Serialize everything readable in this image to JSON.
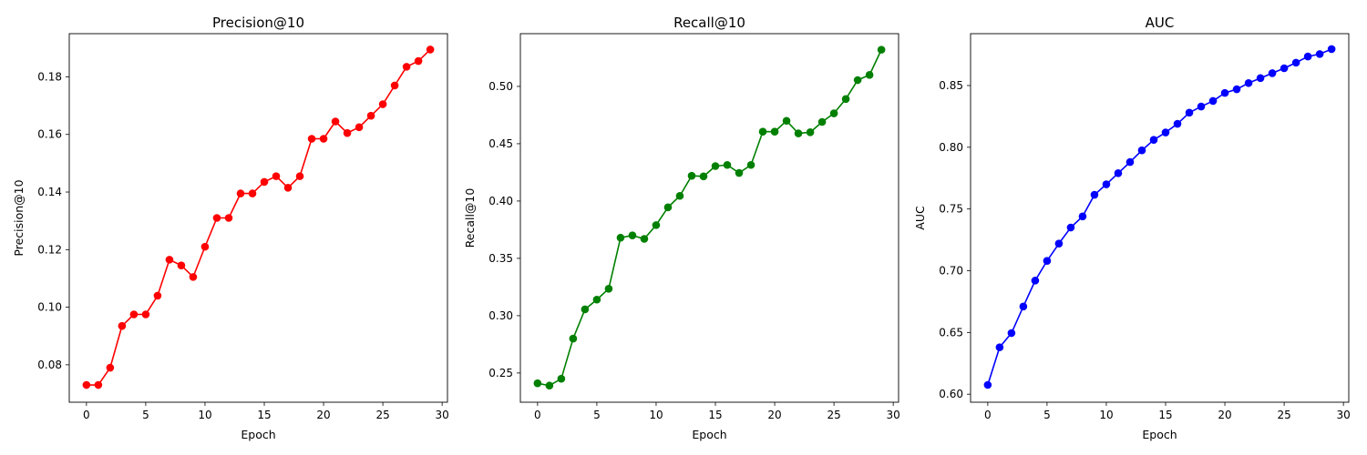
{
  "chart_data": [
    {
      "type": "line",
      "title": "Precision@10",
      "xlabel": "Epoch",
      "ylabel": "Precision@10",
      "color": "#ff0000",
      "xlim": [
        -1.45,
        30.45
      ],
      "ylim": [
        0.067,
        0.195
      ],
      "xticks": [
        0,
        5,
        10,
        15,
        20,
        25,
        30
      ],
      "xtick_labels": [
        "0",
        "5",
        "10",
        "15",
        "20",
        "25",
        "30"
      ],
      "yticks": [
        0.08,
        0.1,
        0.12,
        0.14,
        0.16,
        0.18
      ],
      "ytick_labels": [
        "0.08",
        "0.10",
        "0.12",
        "0.14",
        "0.16",
        "0.18"
      ],
      "x": [
        0,
        1,
        2,
        3,
        4,
        5,
        6,
        7,
        8,
        9,
        10,
        11,
        12,
        13,
        14,
        15,
        16,
        17,
        18,
        19,
        20,
        21,
        22,
        23,
        24,
        25,
        26,
        27,
        28,
        29
      ],
      "values": [
        0.073,
        0.073,
        0.079,
        0.0935,
        0.0975,
        0.0975,
        0.104,
        0.1165,
        0.1145,
        0.1105,
        0.121,
        0.131,
        0.131,
        0.1395,
        0.1395,
        0.1435,
        0.1455,
        0.1415,
        0.1455,
        0.1585,
        0.1585,
        0.1645,
        0.1605,
        0.1625,
        0.1665,
        0.1705,
        0.177,
        0.1835,
        0.1855,
        0.1895
      ]
    },
    {
      "type": "line",
      "title": "Recall@10",
      "xlabel": "Epoch",
      "ylabel": "Recall@10",
      "color": "#008000",
      "xlim": [
        -1.45,
        30.45
      ],
      "ylim": [
        0.2245,
        0.546
      ],
      "xticks": [
        0,
        5,
        10,
        15,
        20,
        25,
        30
      ],
      "xtick_labels": [
        "0",
        "5",
        "10",
        "15",
        "20",
        "25",
        "30"
      ],
      "yticks": [
        0.25,
        0.3,
        0.35,
        0.4,
        0.45,
        0.5
      ],
      "ytick_labels": [
        "0.25",
        "0.30",
        "0.35",
        "0.40",
        "0.45",
        "0.50"
      ],
      "x": [
        0,
        1,
        2,
        3,
        4,
        5,
        6,
        7,
        8,
        9,
        10,
        11,
        12,
        13,
        14,
        15,
        16,
        17,
        18,
        19,
        20,
        21,
        22,
        23,
        24,
        25,
        26,
        27,
        28,
        29
      ],
      "values": [
        0.241,
        0.239,
        0.245,
        0.28,
        0.3055,
        0.314,
        0.3235,
        0.368,
        0.37,
        0.367,
        0.379,
        0.3945,
        0.4045,
        0.422,
        0.4215,
        0.4305,
        0.4315,
        0.4245,
        0.4315,
        0.4605,
        0.4605,
        0.47,
        0.459,
        0.46,
        0.469,
        0.4765,
        0.489,
        0.5055,
        0.51,
        0.532
      ]
    },
    {
      "type": "line",
      "title": "AUC",
      "xlabel": "Epoch",
      "ylabel": "AUC",
      "color": "#0000ff",
      "xlim": [
        -1.45,
        30.45
      ],
      "ylim": [
        0.5935,
        0.892
      ],
      "xticks": [
        0,
        5,
        10,
        15,
        20,
        25,
        30
      ],
      "xtick_labels": [
        "0",
        "5",
        "10",
        "15",
        "20",
        "25",
        "30"
      ],
      "yticks": [
        0.6,
        0.65,
        0.7,
        0.75,
        0.8,
        0.85
      ],
      "ytick_labels": [
        "0.60",
        "0.65",
        "0.70",
        "0.75",
        "0.80",
        "0.85"
      ],
      "x": [
        0,
        1,
        2,
        3,
        4,
        5,
        6,
        7,
        8,
        9,
        10,
        11,
        12,
        13,
        14,
        15,
        16,
        17,
        18,
        19,
        20,
        21,
        22,
        23,
        24,
        25,
        26,
        27,
        28,
        29
      ],
      "values": [
        0.6075,
        0.638,
        0.6495,
        0.671,
        0.692,
        0.708,
        0.722,
        0.735,
        0.744,
        0.7615,
        0.77,
        0.779,
        0.788,
        0.7975,
        0.806,
        0.812,
        0.819,
        0.828,
        0.833,
        0.8375,
        0.844,
        0.847,
        0.852,
        0.856,
        0.86,
        0.864,
        0.8685,
        0.8735,
        0.8755,
        0.8795
      ]
    }
  ]
}
